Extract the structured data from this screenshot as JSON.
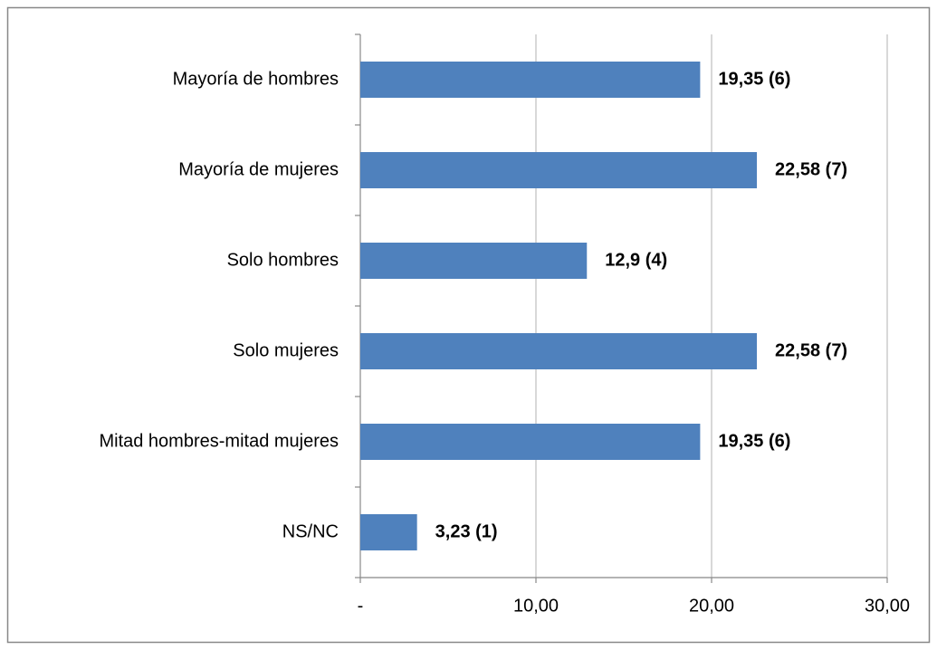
{
  "chart_data": {
    "type": "bar",
    "orientation": "horizontal",
    "categories": [
      "Mayoría de hombres",
      "Mayoría de mujeres",
      "Solo hombres",
      "Solo mujeres",
      "Mitad hombres-mitad mujeres",
      "NS/NC"
    ],
    "values": [
      19.35,
      22.58,
      12.9,
      22.58,
      19.35,
      3.23
    ],
    "value_labels": [
      "19,35 (6)",
      "22,58 (7)",
      "12,9 (4)",
      "22,58 (7)",
      "19,35 (6)",
      "3,23 (1)"
    ],
    "color": "#4f81bd",
    "xlim": [
      0,
      30
    ],
    "xticks": [
      {
        "value": 0,
        "label": "-"
      },
      {
        "value": 10,
        "label": "10,00"
      },
      {
        "value": 20,
        "label": "20,00"
      },
      {
        "value": 30,
        "label": "30,00"
      }
    ],
    "grid": true
  }
}
